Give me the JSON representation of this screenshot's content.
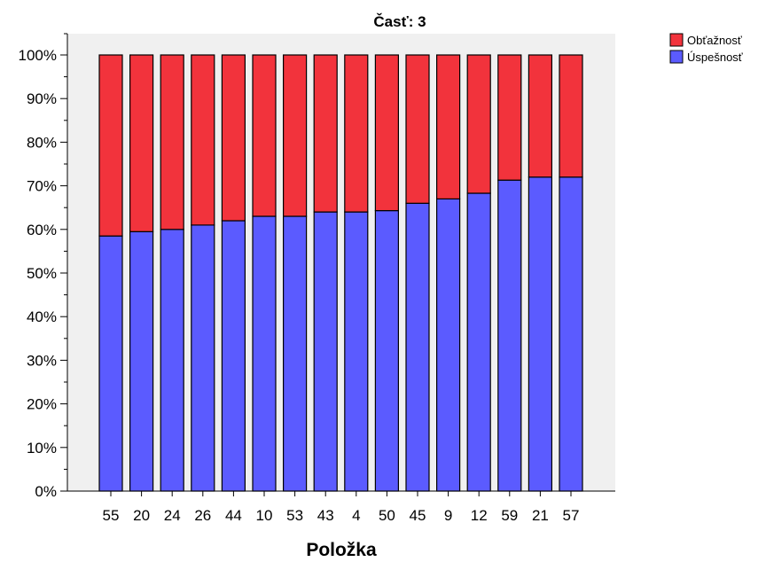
{
  "chart_data": {
    "type": "bar",
    "stacked": true,
    "title": "Časť: 3",
    "xlabel": "Položka",
    "ylabel": "",
    "ylim": [
      0,
      100
    ],
    "y_ticks": [
      "0%",
      "10%",
      "20%",
      "30%",
      "40%",
      "50%",
      "60%",
      "70%",
      "80%",
      "90%",
      "100%"
    ],
    "categories": [
      "55",
      "20",
      "24",
      "26",
      "44",
      "10",
      "53",
      "43",
      "4",
      "50",
      "45",
      "9",
      "12",
      "59",
      "21",
      "57"
    ],
    "series": [
      {
        "name": "Úspešnosť",
        "color": "#5b5bff",
        "values": [
          58.5,
          59.5,
          60,
          61,
          62,
          63,
          63,
          64,
          64,
          64.3,
          66,
          67,
          68.3,
          71.3,
          72,
          72
        ]
      },
      {
        "name": "Obťažnosť",
        "color": "#f2333c",
        "values": [
          41.5,
          40.5,
          40,
          39,
          38,
          37,
          37,
          36,
          36,
          35.7,
          34,
          33,
          31.7,
          28.7,
          28,
          28
        ]
      }
    ],
    "legend": [
      "Obťažnosť",
      "Úspešnosť"
    ],
    "legend_position": "top-right",
    "plot_background": "#f0f0f0",
    "grid": false
  }
}
